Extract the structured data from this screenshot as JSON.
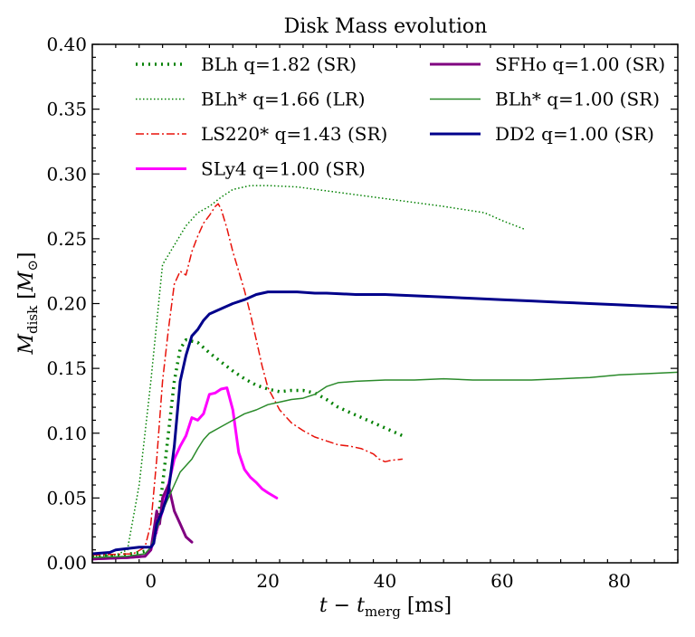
{
  "chart_data": {
    "type": "line",
    "title": "Disk Mass evolution",
    "xlabel": "t − t_merg [ms]",
    "ylabel": "M_disk [M_⊙]",
    "xlim": [
      -10,
      90
    ],
    "ylim": [
      0.0,
      0.4
    ],
    "x_ticks": [
      0,
      20,
      40,
      60,
      80
    ],
    "y_ticks": [
      0.0,
      0.05,
      0.1,
      0.15,
      0.2,
      0.25,
      0.3,
      0.35,
      0.4
    ],
    "x_tick_labels": [
      "0",
      "20",
      "40",
      "60",
      "80"
    ],
    "y_tick_labels": [
      "0.00",
      "0.05",
      "0.10",
      "0.15",
      "0.20",
      "0.25",
      "0.30",
      "0.35",
      "0.40"
    ],
    "grid": false,
    "legend_position": "top",
    "series": [
      {
        "name": "BLh q=1.82 (SR)",
        "color": "#008000",
        "width": 3.5,
        "dash": "2,5",
        "legend_col": 0,
        "legend_row": 0,
        "x": [
          -10,
          -5,
          -2,
          0,
          1,
          2,
          3,
          4,
          5,
          6,
          8,
          10,
          12,
          14,
          16,
          18,
          20,
          22,
          24,
          26,
          28,
          30,
          32,
          35,
          38,
          40,
          43
        ],
        "y": [
          0.005,
          0.006,
          0.008,
          0.01,
          0.025,
          0.06,
          0.1,
          0.14,
          0.165,
          0.172,
          0.17,
          0.162,
          0.155,
          0.148,
          0.142,
          0.137,
          0.134,
          0.132,
          0.133,
          0.133,
          0.131,
          0.126,
          0.12,
          0.114,
          0.108,
          0.104,
          0.098
        ]
      },
      {
        "name": "BLh* q=1.66 (LR)",
        "color": "#008000",
        "width": 1.5,
        "dash": "1.5,2.5",
        "legend_col": 0,
        "legend_row": 1,
        "x": [
          -10,
          -6,
          -4,
          -2,
          0,
          2,
          4,
          6,
          8,
          10,
          12,
          14,
          17,
          20,
          25,
          30,
          35,
          40,
          45,
          50,
          57,
          60,
          64
        ],
        "y": [
          0.005,
          0.006,
          0.01,
          0.06,
          0.14,
          0.23,
          0.245,
          0.26,
          0.27,
          0.275,
          0.282,
          0.288,
          0.291,
          0.291,
          0.29,
          0.287,
          0.284,
          0.281,
          0.278,
          0.275,
          0.27,
          0.264,
          0.257
        ]
      },
      {
        "name": "LS220* q=1.43 (SR)",
        "color": "#e8120a",
        "width": 1.5,
        "dash": "9,3,2,3",
        "legend_col": 0,
        "legend_row": 2,
        "x": [
          -10,
          -3,
          -1,
          0,
          1,
          2,
          3,
          4,
          5,
          6,
          7,
          8,
          9,
          10,
          11,
          11.5,
          12,
          13,
          14,
          15,
          16,
          17,
          18,
          19,
          20,
          22,
          24,
          26,
          28,
          30,
          32,
          34,
          36,
          38,
          39,
          40,
          41,
          43
        ],
        "y": [
          0.006,
          0.007,
          0.012,
          0.03,
          0.08,
          0.14,
          0.18,
          0.215,
          0.225,
          0.222,
          0.24,
          0.252,
          0.262,
          0.268,
          0.275,
          0.277,
          0.273,
          0.258,
          0.24,
          0.225,
          0.21,
          0.192,
          0.172,
          0.152,
          0.135,
          0.118,
          0.108,
          0.102,
          0.097,
          0.094,
          0.091,
          0.09,
          0.088,
          0.084,
          0.08,
          0.078,
          0.079,
          0.08
        ]
      },
      {
        "name": "SLy4 q=1.00 (SR)",
        "color": "#ff00ff",
        "width": 3,
        "dash": "",
        "legend_col": 0,
        "legend_row": 3,
        "x": [
          -10,
          -4,
          -1,
          0,
          1,
          2,
          3,
          4,
          5,
          6,
          7,
          8,
          9,
          10,
          11,
          12,
          13,
          14,
          15,
          16,
          17,
          18,
          19,
          20,
          21.5
        ],
        "y": [
          0.003,
          0.004,
          0.005,
          0.01,
          0.025,
          0.04,
          0.06,
          0.08,
          0.09,
          0.098,
          0.112,
          0.11,
          0.115,
          0.13,
          0.131,
          0.134,
          0.135,
          0.118,
          0.085,
          0.072,
          0.066,
          0.062,
          0.057,
          0.054,
          0.05
        ]
      },
      {
        "name": "SFHo q=1.00 (SR)",
        "color": "#800080",
        "width": 3,
        "dash": "",
        "legend_col": 1,
        "legend_row": 0,
        "x": [
          -10,
          -4,
          -1,
          0,
          1,
          1.5,
          2,
          3,
          4,
          5,
          6,
          7
        ],
        "y": [
          0.003,
          0.004,
          0.005,
          0.01,
          0.04,
          0.03,
          0.05,
          0.06,
          0.04,
          0.03,
          0.02,
          0.016
        ]
      },
      {
        "name": "BLh* q=1.00 (SR)",
        "color": "#2a8a2a",
        "width": 1.5,
        "dash": "",
        "legend_col": 1,
        "legend_row": 1,
        "x": [
          -10,
          -4,
          -1,
          0,
          1,
          2,
          3,
          4,
          5,
          6,
          7,
          8,
          9,
          10,
          12,
          14,
          16,
          18,
          20,
          22,
          24,
          26,
          28,
          30,
          32,
          35,
          40,
          45,
          50,
          55,
          60,
          65,
          70,
          75,
          80,
          85,
          90
        ],
        "y": [
          0.004,
          0.005,
          0.007,
          0.012,
          0.025,
          0.04,
          0.05,
          0.06,
          0.07,
          0.075,
          0.08,
          0.088,
          0.095,
          0.1,
          0.105,
          0.11,
          0.115,
          0.118,
          0.122,
          0.124,
          0.126,
          0.127,
          0.13,
          0.136,
          0.139,
          0.14,
          0.141,
          0.141,
          0.142,
          0.141,
          0.141,
          0.141,
          0.142,
          0.143,
          0.145,
          0.146,
          0.147
        ]
      },
      {
        "name": "DD2 q=1.00 (SR)",
        "color": "#00008b",
        "width": 3,
        "dash": "",
        "legend_col": 1,
        "legend_row": 2,
        "x": [
          -10,
          -7,
          -6,
          -4,
          -2,
          0,
          0.5,
          1,
          2,
          3,
          4,
          5,
          6,
          7,
          8,
          9,
          10,
          12,
          14,
          16,
          18,
          20,
          22,
          25,
          28,
          30,
          35,
          40,
          45,
          50,
          55,
          60,
          65,
          70,
          75,
          80,
          85,
          90
        ],
        "y": [
          0.007,
          0.008,
          0.01,
          0.011,
          0.012,
          0.012,
          0.015,
          0.03,
          0.04,
          0.055,
          0.09,
          0.14,
          0.16,
          0.175,
          0.18,
          0.187,
          0.192,
          0.196,
          0.2,
          0.203,
          0.207,
          0.209,
          0.209,
          0.209,
          0.208,
          0.208,
          0.207,
          0.207,
          0.206,
          0.205,
          0.204,
          0.203,
          0.202,
          0.201,
          0.2,
          0.199,
          0.198,
          0.197
        ]
      }
    ]
  }
}
